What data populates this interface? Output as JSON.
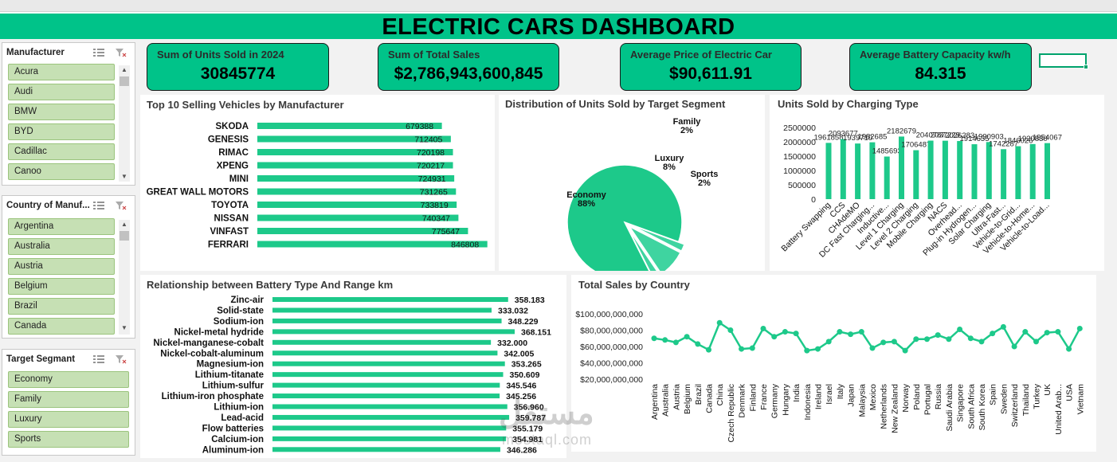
{
  "dashboard": {
    "title": "ELECTRIC CARS DASHBOARD"
  },
  "kpis": [
    {
      "label": "Sum of Units Sold in 2024",
      "value": "30845774"
    },
    {
      "label": "Sum of Total Sales",
      "value": "$2,786,943,600,845"
    },
    {
      "label": "Average Price of Electric Car",
      "value": "$90,611.91"
    },
    {
      "label": "Average Battery Capacity kw/h",
      "value": "84.315"
    }
  ],
  "slicers": {
    "manufacturer": {
      "title": "Manufacturer",
      "items": [
        "Acura",
        "Audi",
        "BMW",
        "BYD",
        "Cadillac",
        "Canoo"
      ]
    },
    "country": {
      "title": "Country of Manuf...",
      "items": [
        "Argentina",
        "Australia",
        "Austria",
        "Belgium",
        "Brazil",
        "Canada"
      ]
    },
    "segment": {
      "title": "Target Segmant",
      "items": [
        "Economy",
        "Family",
        "Luxury",
        "Sports"
      ]
    }
  },
  "icons": {
    "multiselect": "multi-select-icon",
    "clearfilter": "clear-filter-icon",
    "scrollup": "scroll-up-icon",
    "scrolldown": "scroll-down-icon"
  },
  "colors": {
    "accent": "#00c389",
    "bar": "#1dc98a",
    "pie_light": "#3fd4a0",
    "slicer_item": "#c6e0b4"
  },
  "watermark": {
    "arabic": "مستقل",
    "latin": "mostaql.com"
  },
  "chart_data": [
    {
      "type": "bar",
      "orientation": "horizontal",
      "title": "Top 10 Selling Vehicles by Manufacturer",
      "categories": [
        "SKODA",
        "GENESIS",
        "RIMAC",
        "XPENG",
        "MINI",
        "GREAT WALL MOTORS",
        "TOYOTA",
        "NISSAN",
        "VINFAST",
        "FERRARI"
      ],
      "values": [
        679388,
        712405,
        720198,
        720217,
        724931,
        731265,
        733819,
        740347,
        775647,
        846808
      ]
    },
    {
      "type": "pie",
      "title": "Distribution of Units Sold by Target Segment",
      "categories": [
        "Economy",
        "Family",
        "Luxury",
        "Sports"
      ],
      "values": [
        88,
        2,
        8,
        2
      ],
      "labels": [
        "88%",
        "2%",
        "8%",
        "2%"
      ]
    },
    {
      "type": "bar",
      "orientation": "vertical",
      "title": "Units Sold by Charging Type",
      "categories": [
        "Battery Swapping",
        "CCS",
        "CHAdeMO",
        "DC Fast Charging...",
        "Inductive...",
        "Level 1 Charging",
        "Level 2 Charging",
        "Mobile Charging",
        "NACS",
        "Overhead...",
        "Plug-in Hydrogen...",
        "Solar Charging",
        "Ultra-Fast...",
        "Vehicle-to-Grid...",
        "Vehicle-to-Home...",
        "Vehicle-to-Load..."
      ],
      "values": [
        1961858,
        2093677,
        1939710,
        1982685,
        1485693,
        2182679,
        1706487,
        2040787,
        2037229,
        2026283,
        1914635,
        1990903,
        1742287,
        1846026,
        1920830,
        1954067
      ],
      "yticks": [
        "0",
        "500000",
        "1000000",
        "1500000",
        "2000000",
        "2500000"
      ],
      "ylim": [
        0,
        2500000
      ]
    },
    {
      "type": "bar",
      "orientation": "horizontal",
      "title": "Relationship between Battery Type And Range km",
      "categories": [
        "Zinc-air",
        "Solid-state",
        "Sodium-ion",
        "Nickel-metal hydride",
        "Nickel-manganese-cobalt",
        "Nickel-cobalt-aluminum",
        "Magnesium-ion",
        "Lithium-titanate",
        "Lithium-sulfur",
        "Lithium-iron phosphate",
        "Lithium-ion",
        "Lead-acid",
        "Flow batteries",
        "Calcium-ion",
        "Aluminum-ion"
      ],
      "values": [
        358.183,
        333.032,
        348.229,
        368.151,
        332.0,
        342.005,
        353.265,
        350.609,
        345.546,
        345.256,
        356.96,
        359.787,
        355.179,
        354.981,
        346.286
      ],
      "labels": [
        "358.183",
        "333.032",
        "348.229",
        "368.151",
        "332.000",
        "342.005",
        "353.265",
        "350.609",
        "345.546",
        "345.256",
        "356.960",
        "359.787",
        "355.179",
        "354.981",
        "346.286"
      ]
    },
    {
      "type": "line",
      "title": "Total Sales by Country",
      "categories": [
        "Argentina",
        "Australia",
        "Austria",
        "Belgium",
        "Brazil",
        "Canada",
        "China",
        "Czech Republic",
        "Denmark",
        "Finland",
        "France",
        "Germany",
        "Hungary",
        "India",
        "Indonesia",
        "Ireland",
        "Israel",
        "Italy",
        "Japan",
        "Malaysia",
        "Mexico",
        "Netherlands",
        "New Zealand",
        "Norway",
        "Poland",
        "Portugal",
        "Russia",
        "Saudi Arabia",
        "Singapore",
        "South Africa",
        "South Korea",
        "Spain",
        "Sweden",
        "Switzerland",
        "Thailand",
        "Turkey",
        "UK",
        "United Arab...",
        "USA",
        "Vietnam"
      ],
      "values": [
        70000000000,
        68000000000,
        65000000000,
        72000000000,
        63000000000,
        56000000000,
        89000000000,
        80000000000,
        57000000000,
        58000000000,
        82000000000,
        72000000000,
        78000000000,
        76000000000,
        55000000000,
        57000000000,
        66000000000,
        78000000000,
        75000000000,
        78000000000,
        58000000000,
        65000000000,
        66000000000,
        55000000000,
        69000000000,
        69000000000,
        74000000000,
        69000000000,
        81000000000,
        70000000000,
        66000000000,
        76000000000,
        84000000000,
        60000000000,
        78000000000,
        66000000000,
        77000000000,
        78000000000,
        57000000000,
        82000000000
      ],
      "yticks": [
        "$20,000,000,000",
        "$40,000,000,000",
        "$60,000,000,000",
        "$80,000,000,000",
        "$100,000,000,000"
      ],
      "ylim": [
        20000000000,
        100000000000
      ]
    }
  ]
}
